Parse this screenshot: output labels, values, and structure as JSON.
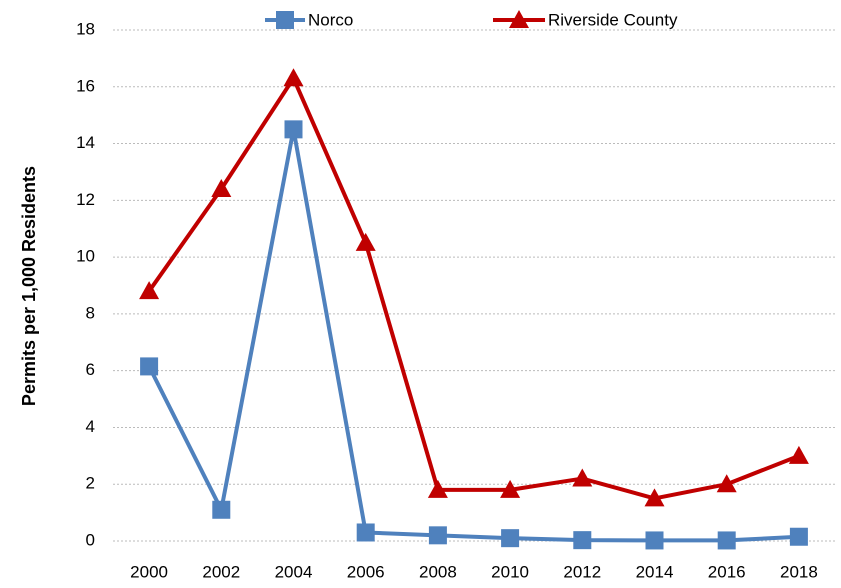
{
  "chart_data": {
    "type": "line",
    "y_label": "Permits per 1,000 Residents",
    "categories": [
      "2000",
      "2002",
      "2004",
      "2006",
      "2008",
      "2010",
      "2012",
      "2014",
      "2016",
      "2018"
    ],
    "series": [
      {
        "name": "Norco",
        "color": "#4f81bd",
        "marker": "square",
        "values": [
          6.15,
          1.1,
          14.5,
          0.3,
          0.2,
          0.1,
          0.03,
          0.02,
          0.02,
          0.15
        ]
      },
      {
        "name": "Riverside County",
        "color": "#c00000",
        "marker": "triangle",
        "values": [
          8.8,
          12.4,
          16.3,
          10.5,
          1.8,
          1.8,
          2.2,
          1.5,
          2.0,
          3.0
        ]
      }
    ],
    "ylim": [
      0,
      18
    ],
    "yticks": [
      0,
      2,
      4,
      6,
      8,
      10,
      12,
      14,
      16,
      18
    ],
    "grid": true,
    "legend": "top"
  }
}
